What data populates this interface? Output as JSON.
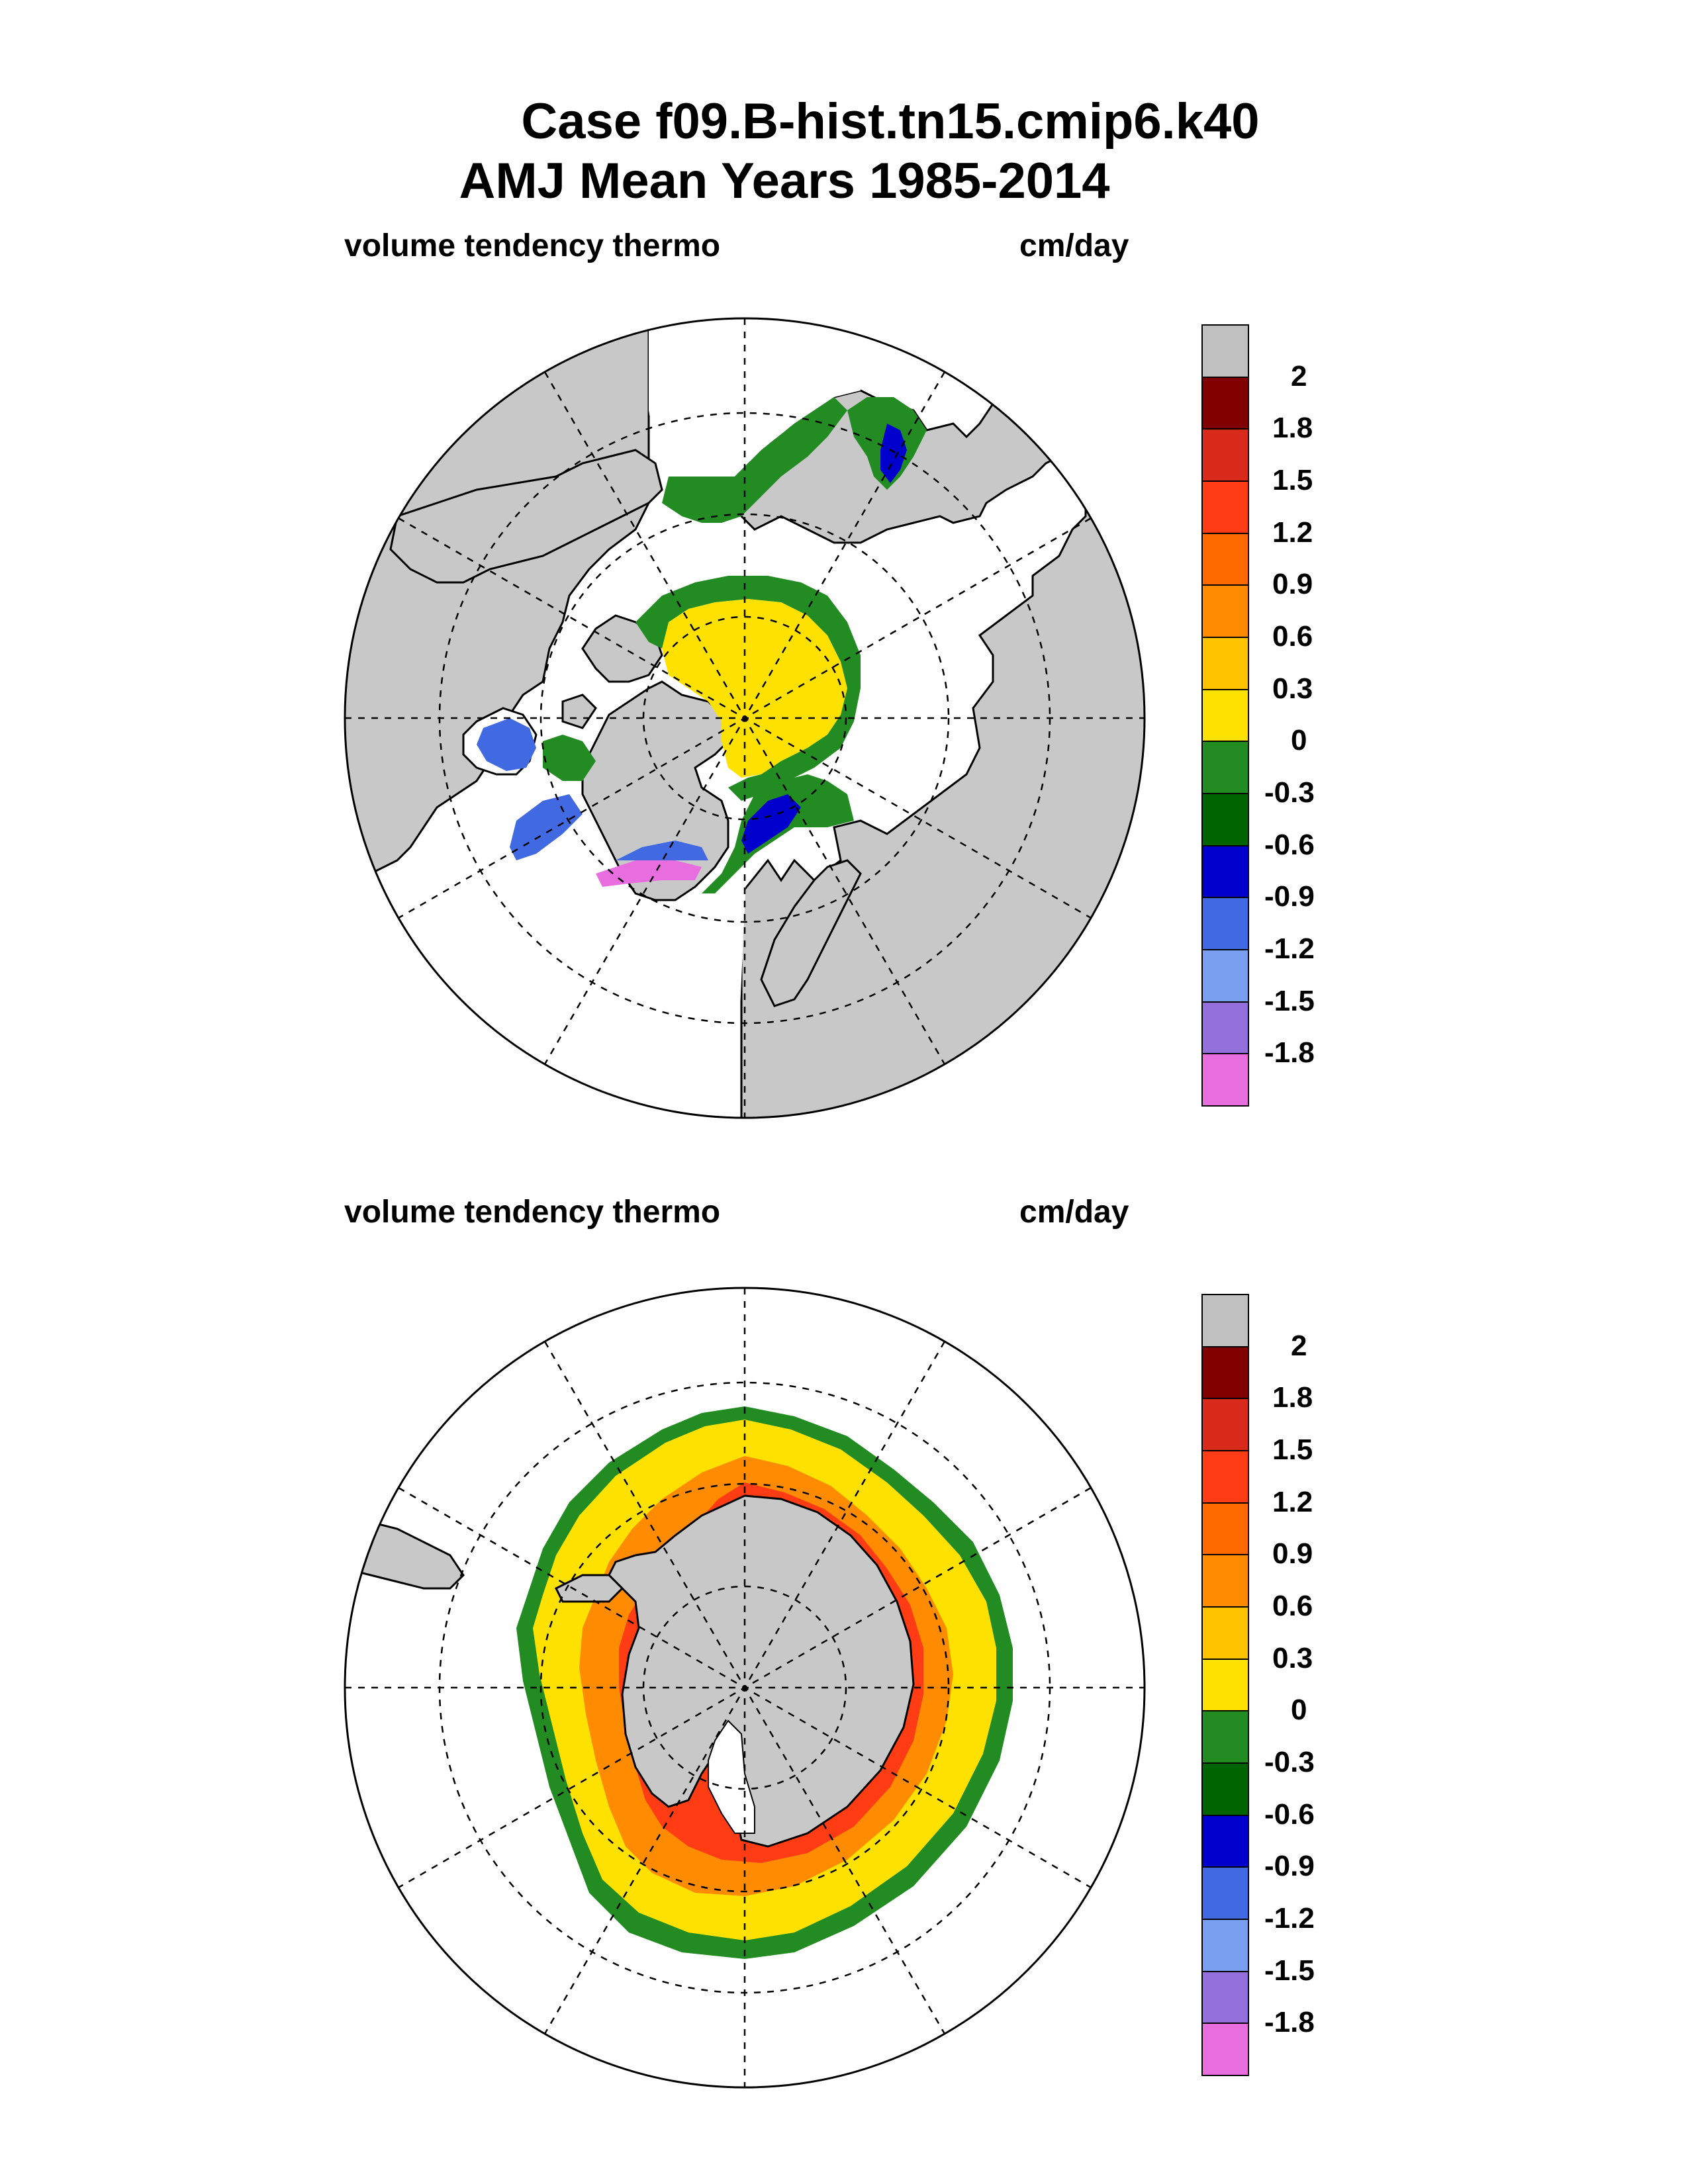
{
  "header": {
    "title_line1": "Case f09.B-hist.tn15.cmip6.k40",
    "title_line2": "AMJ Mean   Years 1985-2014"
  },
  "panels": [
    {
      "hemisphere": "north",
      "variable_label": "volume tendency thermo",
      "units_label": "cm/day"
    },
    {
      "hemisphere": "south",
      "variable_label": "volume tendency thermo",
      "units_label": "cm/day"
    }
  ],
  "colorbar": {
    "tick_labels": [
      "2",
      "1.8",
      "1.5",
      "1.2",
      "0.9",
      "0.6",
      "0.3",
      "0",
      "-0.3",
      "-0.6",
      "-0.9",
      "-1.2",
      "-1.5",
      "-1.8"
    ],
    "colors": [
      "#c0c0c0",
      "#800000",
      "#d72a1b",
      "#ff3c14",
      "#ff6a00",
      "#ff8c00",
      "#ffc300",
      "#ffe100",
      "#228b22",
      "#006400",
      "#0000cd",
      "#4169e1",
      "#7b9ff0",
      "#9370db",
      "#e86ee0"
    ]
  },
  "map_colors": {
    "land": "#c8c8c8",
    "ocean": "#ffffff",
    "gridline": "#000000"
  }
}
